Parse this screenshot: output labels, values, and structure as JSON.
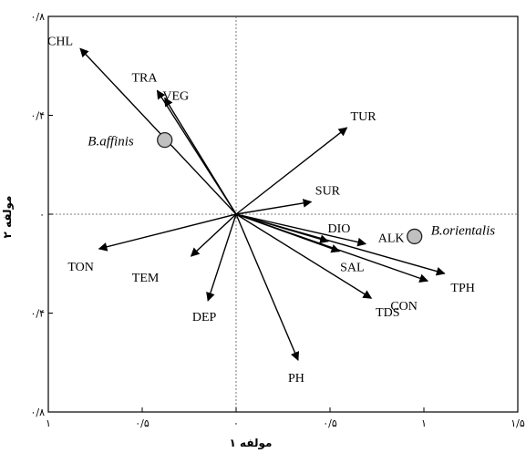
{
  "chart_data": {
    "type": "biplot",
    "xlabel": "مولفه ۱",
    "ylabel": "مولفه ۲",
    "xlim": [
      -1,
      1.5
    ],
    "ylim": [
      -0.8,
      0.8
    ],
    "x_ticks": [
      {
        "value": -1,
        "label": "۱"
      },
      {
        "value": -0.5,
        "label": "۰/۵"
      },
      {
        "value": 0,
        "label": "۰"
      },
      {
        "value": 0.5,
        "label": "۰/۵"
      },
      {
        "value": 1,
        "label": "۱"
      },
      {
        "value": 1.5,
        "label": "۱/۵"
      }
    ],
    "y_ticks": [
      {
        "value": 0.8,
        "label": "۰/۸"
      },
      {
        "value": 0.4,
        "label": "۰/۴"
      },
      {
        "value": 0,
        "label": "۰"
      },
      {
        "value": -0.4,
        "label": "۰/۴"
      },
      {
        "value": -0.8,
        "label": "۰/۸"
      }
    ],
    "vectors": [
      {
        "label": "CHL",
        "x": -0.83,
        "y": 0.67
      },
      {
        "label": "TRA",
        "x": -0.42,
        "y": 0.5
      },
      {
        "label": "VEG",
        "x": -0.38,
        "y": 0.47
      },
      {
        "label": "TUR",
        "x": 0.59,
        "y": 0.35
      },
      {
        "label": "SUR",
        "x": 0.4,
        "y": 0.05
      },
      {
        "label": "DIO",
        "x": 0.49,
        "y": -0.11
      },
      {
        "label": "ALK",
        "x": 0.69,
        "y": -0.12
      },
      {
        "label": "SAL",
        "x": 0.55,
        "y": -0.15
      },
      {
        "label": "TPH",
        "x": 1.11,
        "y": -0.24
      },
      {
        "label": "CON",
        "x": 1.02,
        "y": -0.27
      },
      {
        "label": "TDS",
        "x": 0.72,
        "y": -0.34
      },
      {
        "label": "PH",
        "x": 0.33,
        "y": -0.59
      },
      {
        "label": "DEP",
        "x": -0.15,
        "y": -0.35
      },
      {
        "label": "TEM",
        "x": -0.24,
        "y": -0.17
      },
      {
        "label": "TON",
        "x": -0.73,
        "y": -0.14
      }
    ],
    "points": [
      {
        "label": "B.affinis",
        "x": -0.38,
        "y": 0.3
      },
      {
        "label": "B.orientalis",
        "x": 0.95,
        "y": -0.09
      }
    ],
    "reference_lines": {
      "x": 0,
      "y": 0,
      "style": "dotted"
    }
  }
}
